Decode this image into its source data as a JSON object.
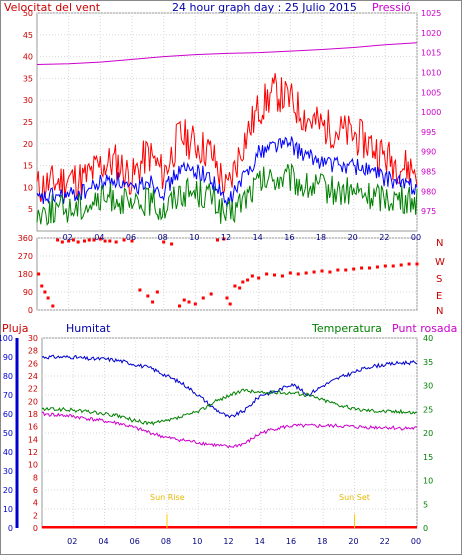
{
  "header": {
    "left": "Velocitat del vent",
    "center": "24 hour graph day : 25 Julio 2015",
    "right": "Pressió"
  },
  "middle_panel": {
    "compass": [
      "N",
      "W",
      "S",
      "E",
      "N"
    ]
  },
  "bottom_panel": {
    "label_rain": "Pluja",
    "label_humidity": "Humitat",
    "label_temperature": "Temperatura",
    "label_dewpoint": "Punt rosada",
    "sun_rise": "Sun Rise",
    "sun_set": "Sun Set"
  },
  "colors": {
    "wind_gust": "#ff0000",
    "wind_avg": "#0000ff",
    "wind_min": "#008000",
    "pressure": "#cc00cc",
    "direction": "#ff0000",
    "humidity": "#0000cc",
    "temperature": "#008000",
    "dewpoint": "#cc00cc",
    "rain": "#ff0000",
    "sun": "#ffcc00",
    "axis_left": "#cc0000",
    "axis_right": "#cc00cc"
  },
  "chart_data": [
    {
      "type": "line",
      "title": "Velocitat del vent / Pressió",
      "x_ticks": [
        "02",
        "04",
        "06",
        "08",
        "10",
        "12",
        "14",
        "16",
        "18",
        "20",
        "22",
        "00"
      ],
      "x_hours": [
        0,
        24
      ],
      "y_left_ticks": [
        5,
        10,
        15,
        20,
        25,
        30,
        35,
        40,
        45,
        50
      ],
      "y_left_range": [
        0,
        50
      ],
      "y_right_ticks": [
        975,
        980,
        985,
        990,
        995,
        1000,
        1005,
        1010,
        1015,
        1020,
        1025
      ],
      "y_right_range": [
        970,
        1025
      ],
      "series": [
        {
          "name": "gust",
          "axis": "left",
          "x": [
            0,
            1,
            2,
            3,
            4,
            5,
            6,
            7,
            8,
            9,
            10,
            11,
            12,
            13,
            14,
            15,
            16,
            17,
            18,
            19,
            20,
            21,
            22,
            23,
            24
          ],
          "values": [
            10,
            11,
            12,
            12,
            15,
            16,
            12,
            18,
            13,
            22,
            20,
            18,
            9,
            20,
            28,
            32,
            30,
            26,
            24,
            23,
            22,
            20,
            17,
            15,
            14
          ]
        },
        {
          "name": "average",
          "axis": "left",
          "x": [
            0,
            1,
            2,
            3,
            4,
            5,
            6,
            7,
            8,
            9,
            10,
            11,
            12,
            13,
            14,
            15,
            16,
            17,
            18,
            19,
            20,
            21,
            22,
            23,
            24
          ],
          "values": [
            7,
            8,
            8,
            9,
            11,
            12,
            9,
            12,
            9,
            14,
            14,
            12,
            6,
            12,
            18,
            20,
            20,
            17,
            16,
            15,
            15,
            14,
            12,
            11,
            10
          ]
        },
        {
          "name": "minimum",
          "axis": "left",
          "x": [
            0,
            1,
            2,
            3,
            4,
            5,
            6,
            7,
            8,
            9,
            10,
            11,
            12,
            13,
            14,
            15,
            16,
            17,
            18,
            19,
            20,
            21,
            22,
            23,
            24
          ],
          "values": [
            4,
            5,
            5,
            6,
            7,
            8,
            5,
            7,
            5,
            9,
            9,
            8,
            3,
            7,
            11,
            12,
            12,
            10,
            10,
            9,
            9,
            8,
            8,
            7,
            7
          ]
        },
        {
          "name": "pressure",
          "axis": "right",
          "x": [
            0,
            2,
            4,
            6,
            8,
            10,
            12,
            14,
            16,
            18,
            20,
            22,
            24
          ],
          "values": [
            1012,
            1012.2,
            1012.6,
            1013.3,
            1014,
            1014.5,
            1014.8,
            1015,
            1015.4,
            1015.8,
            1016.3,
            1017,
            1017.5
          ]
        }
      ]
    },
    {
      "type": "scatter",
      "title": "Wind direction",
      "y_ticks": [
        0,
        90,
        180,
        270,
        360
      ],
      "y_range": [
        0,
        360
      ],
      "series": [
        {
          "name": "direction",
          "x": [
            0.1,
            0.3,
            0.5,
            0.7,
            1.0,
            1.3,
            1.6,
            2.0,
            2.3,
            2.6,
            3.0,
            3.3,
            3.6,
            4.0,
            4.3,
            4.6,
            5.0,
            5.5,
            6.0,
            6.5,
            7.0,
            7.3,
            7.6,
            8.0,
            8.5,
            9.0,
            9.3,
            9.6,
            10.0,
            10.5,
            11.0,
            11.4,
            11.8,
            12.0,
            12.2,
            12.5,
            12.8,
            13.0,
            13.3,
            13.6,
            14.0,
            14.5,
            15.0,
            15.5,
            16.0,
            16.5,
            17.0,
            17.5,
            18.0,
            18.5,
            19.0,
            19.5,
            20.0,
            20.5,
            21.0,
            21.5,
            22.0,
            22.5,
            23.0,
            23.5,
            24.0
          ],
          "values": [
            180,
            120,
            90,
            60,
            20,
            350,
            340,
            345,
            350,
            340,
            345,
            350,
            350,
            355,
            345,
            345,
            340,
            350,
            345,
            100,
            70,
            40,
            90,
            340,
            330,
            20,
            50,
            40,
            30,
            60,
            80,
            350,
            355,
            60,
            30,
            120,
            110,
            140,
            150,
            170,
            160,
            180,
            175,
            170,
            185,
            180,
            185,
            190,
            195,
            190,
            200,
            200,
            205,
            210,
            210,
            215,
            220,
            220,
            225,
            230,
            230
          ]
        }
      ]
    },
    {
      "type": "line",
      "title": "Humitat / Temperatura / Punt rosada / Pluja",
      "y_rain_ticks": [
        0,
        2,
        4,
        6,
        8,
        10,
        12,
        14,
        16,
        18,
        20,
        22,
        24,
        26,
        28,
        30
      ],
      "y_rain_range": [
        0,
        30
      ],
      "y_hum_ticks": [
        0,
        10,
        20,
        30,
        40,
        50,
        60,
        70,
        80,
        90,
        100
      ],
      "y_hum_range": [
        0,
        100
      ],
      "y_temp_ticks": [
        0,
        5,
        10,
        15,
        20,
        25,
        30,
        35,
        40
      ],
      "y_temp_range": [
        0,
        40
      ],
      "series": [
        {
          "name": "humidity",
          "axis": "hum",
          "x": [
            0,
            1,
            2,
            3,
            4,
            5,
            6,
            7,
            8,
            9,
            10,
            11,
            12,
            13,
            14,
            15,
            16,
            17,
            18,
            19,
            20,
            21,
            22,
            23,
            24
          ],
          "values": [
            90,
            90,
            90,
            89,
            89,
            88,
            86,
            84,
            80,
            76,
            70,
            63,
            58,
            62,
            70,
            72,
            76,
            70,
            75,
            79,
            82,
            85,
            86,
            87,
            87
          ]
        },
        {
          "name": "temperature",
          "axis": "temp",
          "x": [
            0,
            1,
            2,
            3,
            4,
            5,
            6,
            7,
            8,
            9,
            10,
            11,
            12,
            13,
            14,
            15,
            16,
            17,
            18,
            19,
            20,
            21,
            22,
            23,
            24
          ],
          "values": [
            25,
            25,
            24.8,
            24.5,
            24,
            23.5,
            22.5,
            22,
            22.5,
            23.5,
            24.5,
            26.5,
            28,
            29,
            28.5,
            28.5,
            28.5,
            28,
            27,
            26,
            25,
            24.8,
            24.6,
            24.5,
            24.3
          ]
        },
        {
          "name": "dewpoint",
          "axis": "temp",
          "x": [
            0,
            1,
            2,
            3,
            4,
            5,
            6,
            7,
            8,
            9,
            10,
            11,
            12,
            13,
            14,
            15,
            16,
            17,
            18,
            19,
            20,
            21,
            22,
            23,
            24
          ],
          "values": [
            24,
            23.8,
            23.5,
            23,
            22.5,
            22,
            21,
            20,
            19,
            18.5,
            18,
            17.5,
            17,
            17.8,
            20,
            21,
            21.5,
            21.5,
            21.5,
            21.5,
            21.3,
            21.2,
            21.2,
            21,
            21
          ]
        },
        {
          "name": "rain",
          "axis": "rain",
          "x": [
            0,
            24
          ],
          "values": [
            0,
            0
          ]
        }
      ],
      "annotations": [
        {
          "label": "Sun Rise",
          "x": 8
        },
        {
          "label": "Sun Set",
          "x": 20
        }
      ]
    }
  ]
}
